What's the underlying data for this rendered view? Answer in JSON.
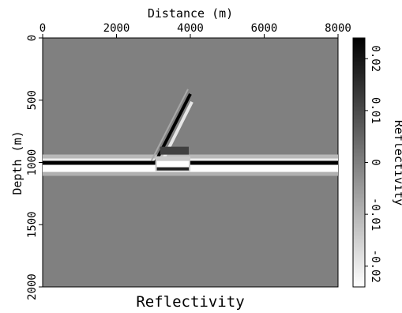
{
  "chart_data": {
    "type": "heatmap",
    "title": "Reflectivity",
    "xlabel": "Distance (m)",
    "ylabel": "Depth (m)",
    "xlim": [
      0,
      8000
    ],
    "ylim": [
      0,
      2000
    ],
    "x_ticks": [
      "0",
      "2000",
      "4000",
      "6000",
      "8000"
    ],
    "y_ticks": [
      "0",
      "500",
      "1000",
      "1500",
      "2000"
    ],
    "colorbar": {
      "label": "Reflectivity",
      "range": [
        -0.024,
        0.024
      ],
      "ticks": [
        "-0.02",
        "-0.01",
        "0",
        "0.01",
        "0.02"
      ],
      "colormap": "gray (black = positive, white = negative)"
    },
    "features": [
      {
        "kind": "horizontal-reflector",
        "depth": 1000,
        "x_range": [
          0,
          8000
        ]
      },
      {
        "kind": "dipping-reflector",
        "from": [
          3050,
          1000
        ],
        "to": [
          4000,
          450
        ]
      },
      {
        "kind": "fault-block",
        "x_range": [
          3050,
          4000
        ],
        "depth_range": [
          950,
          1070
        ]
      }
    ],
    "colors": {
      "background": "#808080",
      "positive": "#000000",
      "negative": "#ffffff"
    }
  }
}
